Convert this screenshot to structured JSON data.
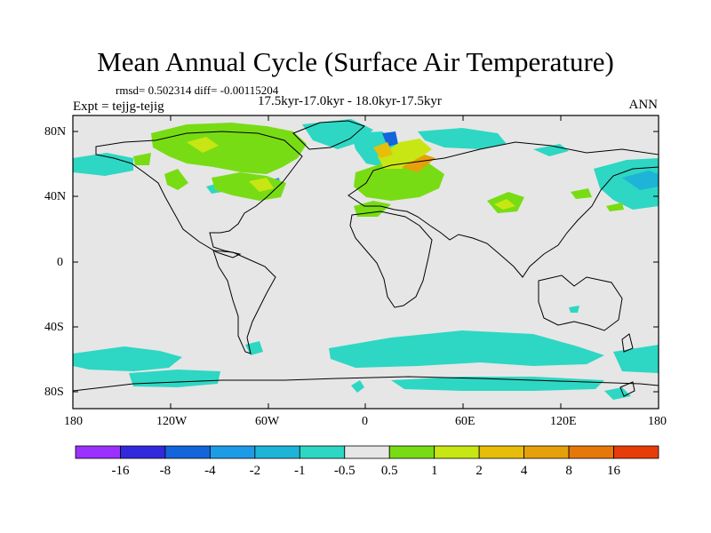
{
  "title": "Mean Annual Cycle (Surface Air Temperature)",
  "stats_text": "rmsd= 0.502314 diff= -0.00115204",
  "period_text": "17.5kyr-17.0kyr - 18.0kyr-17.5kyr",
  "expt_text": "Expt = tejjg-tejig",
  "season_label": "ANN",
  "lat_labels": [
    "80N",
    "40N",
    "0",
    "40S",
    "80S"
  ],
  "lon_labels": [
    "180",
    "120W",
    "60W",
    "0",
    "60E",
    "120E",
    "180"
  ],
  "colorbar": {
    "colors": [
      "#9b30ff",
      "#3228dc",
      "#1464dc",
      "#1e9be6",
      "#1eb4d7",
      "#2dd7c3",
      "#e6e6e6",
      "#78dc14",
      "#c8e614",
      "#e6be0a",
      "#e6a00a",
      "#e6780a",
      "#e63c0a"
    ],
    "tick_labels": [
      "-16",
      "-8",
      "-4",
      "-2",
      "-1",
      "-0.5",
      "0.5",
      "1",
      "2",
      "4",
      "8",
      "16"
    ]
  }
}
